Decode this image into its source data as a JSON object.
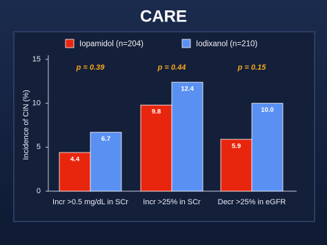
{
  "chart_data": {
    "type": "bar",
    "title": "CARE",
    "y_label": "Incidence of CIN (%)",
    "categories": [
      "Incr >0.5 mg/dL in SCr",
      "Incr >25% in SCr",
      "Decr >25% in eGFR"
    ],
    "series": [
      {
        "name": "Iopamidol (n=204)",
        "color": "#e8260d",
        "values": [
          4.4,
          9.8,
          5.9
        ]
      },
      {
        "name": "Iodixanol (n=210)",
        "color": "#5a90f2",
        "values": [
          6.7,
          12.4,
          10.0
        ],
        "value_labels": [
          "6.7",
          "12.4",
          "10.0"
        ]
      }
    ],
    "annotations": [
      "p = 0.39",
      "p = 0.44",
      "p = 0.15"
    ],
    "ylim": [
      0,
      15
    ],
    "yticks": [
      0,
      5,
      10,
      15
    ],
    "grid": false
  }
}
